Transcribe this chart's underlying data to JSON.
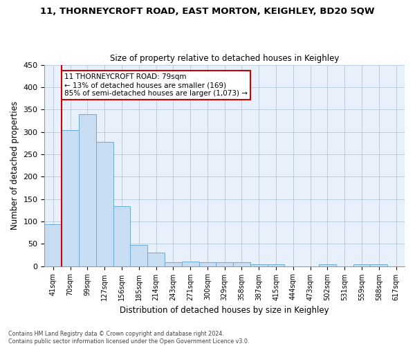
{
  "title_line1": "11, THORNEYCROFT ROAD, EAST MORTON, KEIGHLEY, BD20 5QW",
  "title_line2": "Size of property relative to detached houses in Keighley",
  "xlabel": "Distribution of detached houses by size in Keighley",
  "ylabel": "Number of detached properties",
  "bar_color": "#c9ddf2",
  "bar_edgecolor": "#6aaad4",
  "categories": [
    "41sqm",
    "70sqm",
    "99sqm",
    "127sqm",
    "156sqm",
    "185sqm",
    "214sqm",
    "243sqm",
    "271sqm",
    "300sqm",
    "329sqm",
    "358sqm",
    "387sqm",
    "415sqm",
    "444sqm",
    "473sqm",
    "502sqm",
    "531sqm",
    "559sqm",
    "588sqm",
    "617sqm"
  ],
  "values": [
    93,
    304,
    339,
    278,
    134,
    47,
    31,
    9,
    10,
    8,
    8,
    9,
    4,
    4,
    0,
    0,
    4,
    0,
    4,
    4,
    0
  ],
  "ylim": [
    0,
    450
  ],
  "yticks": [
    0,
    50,
    100,
    150,
    200,
    250,
    300,
    350,
    400,
    450
  ],
  "property_line_bin": 1,
  "annotation_text": "11 THORNEYCROFT ROAD: 79sqm\n← 13% of detached houses are smaller (169)\n85% of semi-detached houses are larger (1,073) →",
  "background_color": "#ffffff",
  "axes_bg_color": "#e8f0fb",
  "grid_color": "#b8c8d8",
  "footnote": "Contains HM Land Registry data © Crown copyright and database right 2024.\nContains public sector information licensed under the Open Government Licence v3.0."
}
